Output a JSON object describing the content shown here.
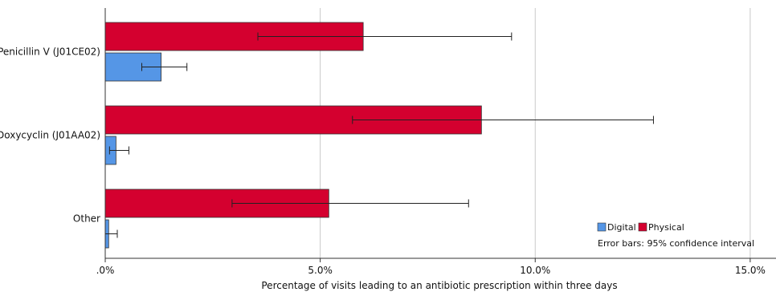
{
  "chart_data": {
    "type": "bar",
    "orientation": "horizontal",
    "categories": [
      "Penicillin V (J01CE02)",
      "Doxycyclin (J01AA02)",
      "Other"
    ],
    "series": [
      {
        "name": "Physical",
        "color": "#d4002f",
        "values": [
          6.0,
          8.75,
          5.2
        ],
        "ci_low": [
          3.55,
          5.75,
          2.95
        ],
        "ci_high": [
          9.45,
          12.75,
          8.45
        ]
      },
      {
        "name": "Digital",
        "color": "#5596e6",
        "values": [
          1.3,
          0.25,
          0.08
        ],
        "ci_low": [
          0.85,
          0.1,
          0.0
        ],
        "ci_high": [
          1.9,
          0.55,
          0.28
        ]
      }
    ],
    "xlabel": "Percentage of visits leading to an antibiotic prescription within three days",
    "xlim": [
      0,
      15.6
    ],
    "xticks": [
      0,
      5,
      10,
      15
    ],
    "xtick_labels": [
      ".0%",
      "5.0%",
      "10.0%",
      "15.0%"
    ],
    "grid": "vertical",
    "legend_position": "bottom-right",
    "error_bar_note": "Error bars: 95% confidence interval"
  }
}
